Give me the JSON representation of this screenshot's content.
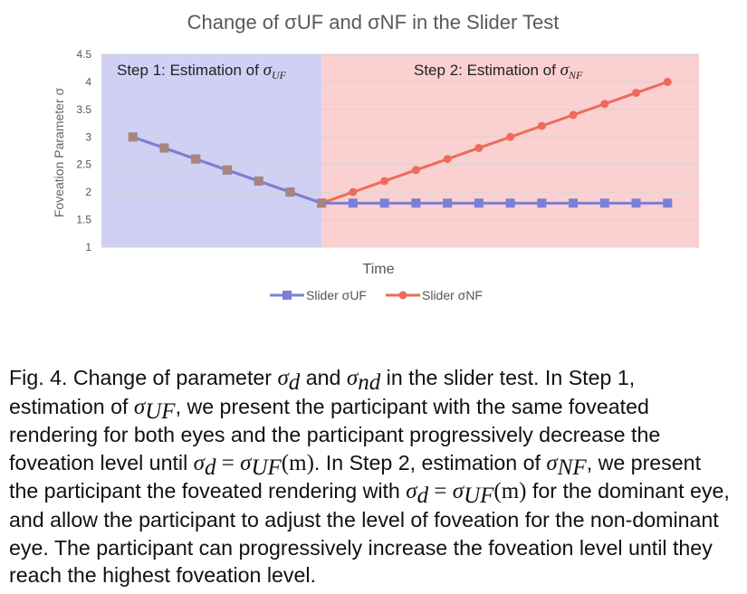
{
  "chart_data": {
    "type": "line",
    "title": "Change of σUF and σNF in the Slider Test",
    "xlabel": "Time",
    "ylabel": "Foveation Parameter σ",
    "ylim": [
      1,
      4.5
    ],
    "yticks": [
      "1",
      "1.5",
      "2",
      "2.5",
      "3",
      "3.5",
      "4",
      "4.5"
    ],
    "grid": true,
    "legend_position": "bottom",
    "x": [
      1,
      2,
      3,
      4,
      5,
      6,
      7,
      8,
      9,
      10,
      11,
      12,
      13,
      14,
      15,
      16,
      17,
      18
    ],
    "series": [
      {
        "name": "Slider σUF",
        "color": "#7b7fd6",
        "marker": "square",
        "values": [
          3,
          2.8,
          2.6,
          2.4,
          2.2,
          2,
          1.8,
          1.8,
          1.8,
          1.8,
          1.8,
          1.8,
          1.8,
          1.8,
          1.8,
          1.8,
          1.8,
          1.8
        ]
      },
      {
        "name": "Slider σNF",
        "color": "#ee6b5a",
        "marker": "circle",
        "values": [
          3,
          2.8,
          2.6,
          2.4,
          2.2,
          2,
          1.8,
          2,
          2.2,
          2.4,
          2.6,
          2.8,
          3,
          3.2,
          3.4,
          3.6,
          3.8,
          4
        ]
      }
    ],
    "regions": [
      {
        "label": "Step 1: Estimation of ",
        "symbol": "σ",
        "sub": "UF",
        "x_from": 0,
        "x_to": 7,
        "color": "#cfd0f4"
      },
      {
        "label": "Step 2: Estimation of ",
        "symbol": "σ",
        "sub": "NF",
        "x_from": 7,
        "x_to": 19,
        "color": "#fbd0d0"
      }
    ]
  },
  "caption": {
    "t1": "Fig. 4.  Change of parameter ",
    "s1": "σ",
    "s1sub": "d",
    "t2": " and ",
    "s2": "σ",
    "s2sub": "nd",
    "t3": " in the slider test.  In Step 1, estimation of ",
    "s3": "σ",
    "s3sub": "UF",
    "t4": ", we present the participant with the same foveated rendering for both eyes and the participant progressively decrease the foveation level until ",
    "s4": "σ",
    "s4sub": "d",
    "eq1": " = ",
    "s5": "σ",
    "s5sub": "UF",
    "m1": "(m)",
    "t5": ". In Step 2, estimation of ",
    "s6": "σ",
    "s6sub": "NF",
    "t6": ", we present the participant the foveated rendering with ",
    "s7": "σ",
    "s7sub": "d",
    "eq2": " = ",
    "s8": "σ",
    "s8sub": "UF",
    "m2": "(m)",
    "t7": " for the dominant eye, and allow the participant to adjust the level of foveation for the non-dominant eye. The participant can progressively increase the foveation level until they reach the highest foveation level."
  }
}
